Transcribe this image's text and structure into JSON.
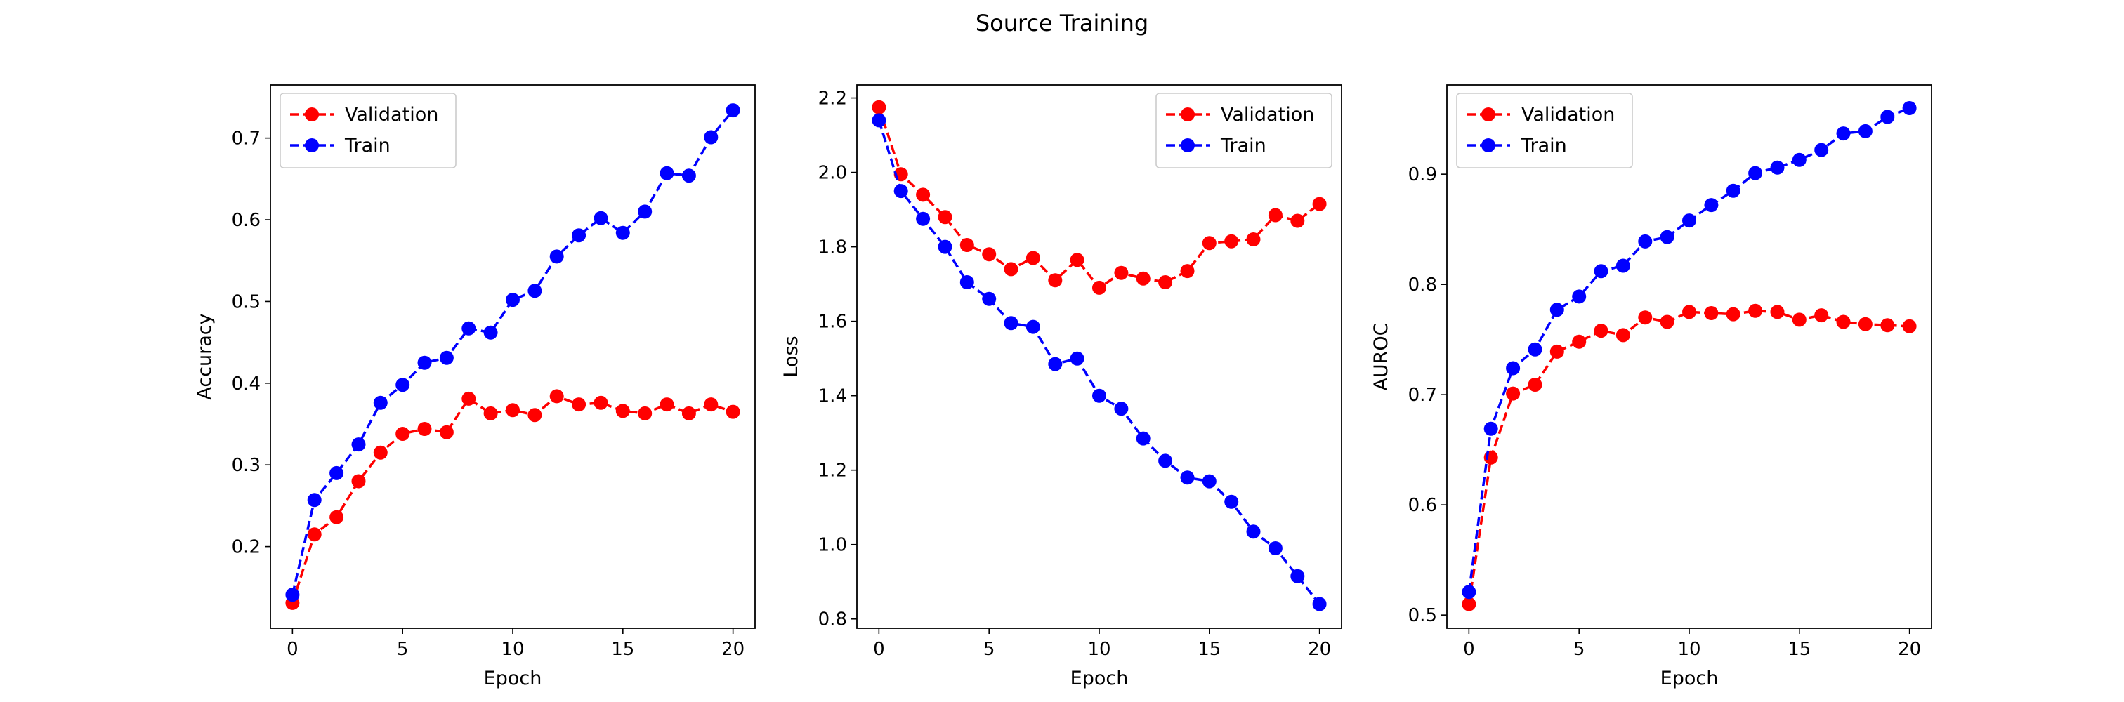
{
  "figure": {
    "title": "Source Training"
  },
  "chart_data": [
    {
      "type": "line",
      "title": "",
      "xlabel": "Epoch",
      "ylabel": "Accuracy",
      "xlim": [
        -1,
        21
      ],
      "ylim": [
        0.1,
        0.765
      ],
      "xticks": [
        0,
        5,
        10,
        15,
        20
      ],
      "yticks": [
        0.2,
        0.3,
        0.4,
        0.5,
        0.6,
        0.7
      ],
      "ytick_labels": [
        "0.2",
        "0.3",
        "0.4",
        "0.5",
        "0.6",
        "0.7"
      ],
      "grid": false,
      "legend_position": "upper-left",
      "x": [
        0,
        1,
        2,
        3,
        4,
        5,
        6,
        7,
        8,
        9,
        10,
        11,
        12,
        13,
        14,
        15,
        16,
        17,
        18,
        19,
        20
      ],
      "series": [
        {
          "name": "Validation",
          "color": "#ff0000",
          "style": "dashed",
          "marker": "circle",
          "values": [
            0.131,
            0.215,
            0.236,
            0.28,
            0.315,
            0.338,
            0.344,
            0.34,
            0.381,
            0.363,
            0.367,
            0.361,
            0.384,
            0.374,
            0.376,
            0.366,
            0.363,
            0.374,
            0.363,
            0.374,
            0.365
          ]
        },
        {
          "name": "Train",
          "color": "#0000ff",
          "style": "dashed",
          "marker": "circle",
          "values": [
            0.141,
            0.257,
            0.29,
            0.325,
            0.376,
            0.398,
            0.425,
            0.431,
            0.467,
            0.462,
            0.502,
            0.513,
            0.555,
            0.581,
            0.602,
            0.584,
            0.61,
            0.657,
            0.654,
            0.701,
            0.734
          ]
        }
      ]
    },
    {
      "type": "line",
      "title": "",
      "xlabel": "Epoch",
      "ylabel": "Loss",
      "xlim": [
        -1,
        21
      ],
      "ylim": [
        0.775,
        2.235
      ],
      "xticks": [
        0,
        5,
        10,
        15,
        20
      ],
      "yticks": [
        0.8,
        1.0,
        1.2,
        1.4,
        1.6,
        1.8,
        2.0,
        2.2
      ],
      "ytick_labels": [
        "0.8",
        "1.0",
        "1.2",
        "1.4",
        "1.6",
        "1.8",
        "2.0",
        "2.2"
      ],
      "grid": false,
      "legend_position": "upper-right",
      "x": [
        0,
        1,
        2,
        3,
        4,
        5,
        6,
        7,
        8,
        9,
        10,
        11,
        12,
        13,
        14,
        15,
        16,
        17,
        18,
        19,
        20
      ],
      "series": [
        {
          "name": "Validation",
          "color": "#ff0000",
          "style": "dashed",
          "marker": "circle",
          "values": [
            2.175,
            1.995,
            1.94,
            1.88,
            1.805,
            1.78,
            1.74,
            1.77,
            1.71,
            1.765,
            1.69,
            1.73,
            1.715,
            1.705,
            1.735,
            1.81,
            1.815,
            1.82,
            1.885,
            1.87,
            1.915
          ]
        },
        {
          "name": "Train",
          "color": "#0000ff",
          "style": "dashed",
          "marker": "circle",
          "values": [
            2.14,
            1.95,
            1.875,
            1.8,
            1.705,
            1.66,
            1.595,
            1.585,
            1.485,
            1.5,
            1.4,
            1.365,
            1.285,
            1.225,
            1.18,
            1.17,
            1.115,
            1.035,
            0.99,
            0.915,
            0.84
          ]
        }
      ]
    },
    {
      "type": "line",
      "title": "",
      "xlabel": "Epoch",
      "ylabel": "AUROC",
      "xlim": [
        -1,
        21
      ],
      "ylim": [
        0.488,
        0.981
      ],
      "xticks": [
        0,
        5,
        10,
        15,
        20
      ],
      "yticks": [
        0.5,
        0.6,
        0.7,
        0.8,
        0.9
      ],
      "ytick_labels": [
        "0.5",
        "0.6",
        "0.7",
        "0.8",
        "0.9"
      ],
      "grid": false,
      "legend_position": "upper-left",
      "x": [
        0,
        1,
        2,
        3,
        4,
        5,
        6,
        7,
        8,
        9,
        10,
        11,
        12,
        13,
        14,
        15,
        16,
        17,
        18,
        19,
        20
      ],
      "series": [
        {
          "name": "Validation",
          "color": "#ff0000",
          "style": "dashed",
          "marker": "circle",
          "values": [
            0.51,
            0.643,
            0.701,
            0.709,
            0.739,
            0.748,
            0.758,
            0.754,
            0.77,
            0.766,
            0.775,
            0.774,
            0.773,
            0.776,
            0.775,
            0.768,
            0.772,
            0.766,
            0.764,
            0.763,
            0.762
          ]
        },
        {
          "name": "Train",
          "color": "#0000ff",
          "style": "dashed",
          "marker": "circle",
          "values": [
            0.521,
            0.669,
            0.724,
            0.741,
            0.777,
            0.789,
            0.812,
            0.817,
            0.839,
            0.843,
            0.858,
            0.872,
            0.885,
            0.901,
            0.906,
            0.913,
            0.922,
            0.937,
            0.939,
            0.952,
            0.96
          ]
        }
      ]
    }
  ]
}
